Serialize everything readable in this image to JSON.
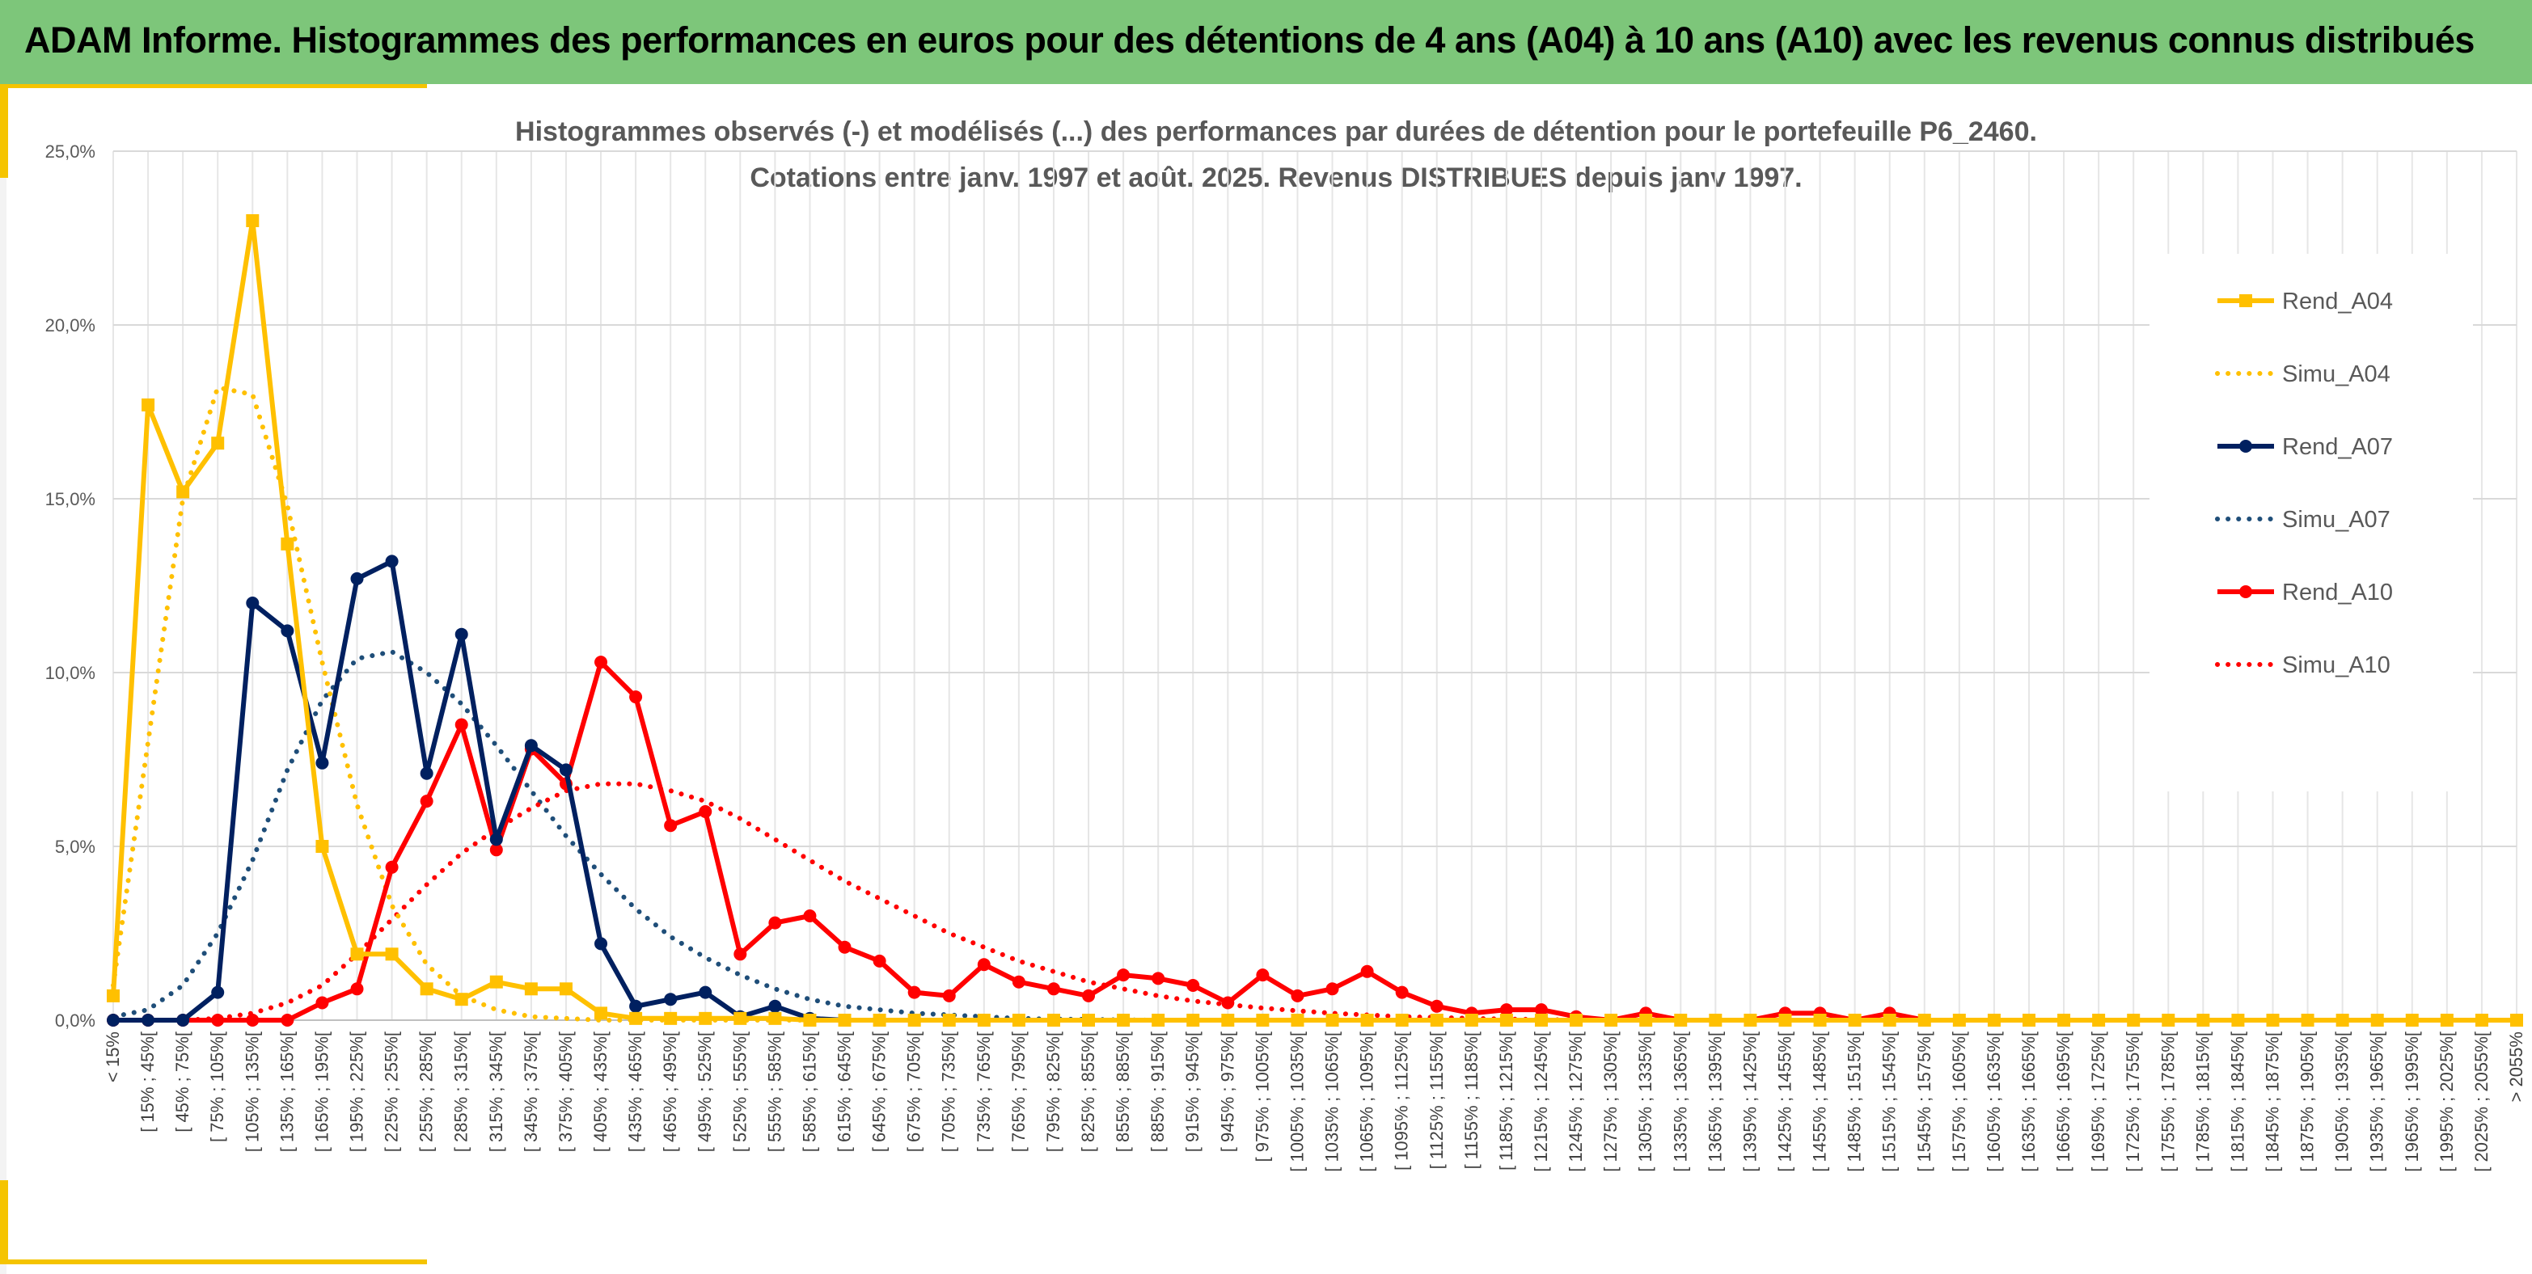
{
  "header": {
    "title": "ADAM Informe. Histogrammes des performances en euros pour des détentions de 4 ans (A04) à 10 ans (A10) avec les revenus connus distribués"
  },
  "colors": {
    "banner": "#7DC67A",
    "a04": "#FFC000",
    "a07": "#002060",
    "a07_simu": "#1F4E79",
    "a10": "#FF0000",
    "grid": "#D9D9D9",
    "text": "#595959"
  },
  "chart_data": {
    "type": "line",
    "title": "Histogrammes observés (-) et modélisés (...) des performances par durées de détention pour le portefeuille P6_2460.",
    "subtitle": "Cotations entre janv. 1997 et août. 2025. Revenus DISTRIBUES depuis janv 1997.",
    "xlabel": "",
    "ylabel": "",
    "ylim": [
      0,
      25
    ],
    "y_ticks": [
      "0,0%",
      "5,0%",
      "10,0%",
      "15,0%",
      "20,0%",
      "25,0%"
    ],
    "grid": true,
    "legend_position": "right",
    "categories": [
      "< 15%",
      "[ 15% ; 45%[",
      "[ 45% ; 75%[",
      "[ 75% ; 105%[",
      "[ 105% ; 135%[",
      "[ 135% ; 165%[",
      "[ 165% ; 195%[",
      "[ 195% ; 225%[",
      "[ 225% ; 255%[",
      "[ 255% ; 285%[",
      "[ 285% ; 315%[",
      "[ 315% ; 345%[",
      "[ 345% ; 375%[",
      "[ 375% ; 405%[",
      "[ 405% ; 435%[",
      "[ 435% ; 465%[",
      "[ 465% ; 495%[",
      "[ 495% ; 525%[",
      "[ 525% ; 555%[",
      "[ 555% ; 585%[",
      "[ 585% ; 615%[",
      "[ 615% ; 645%[",
      "[ 645% ; 675%[",
      "[ 675% ; 705%[",
      "[ 705% ; 735%[",
      "[ 735% ; 765%[",
      "[ 765% ; 795%[",
      "[ 795% ; 825%[",
      "[ 825% ; 855%[",
      "[ 855% ; 885%[",
      "[ 885% ; 915%[",
      "[ 915% ; 945%[",
      "[ 945% ; 975%[",
      "[ 975% ; 1005%[",
      "[ 1005% ; 1035%[",
      "[ 1035% ; 1065%[",
      "[ 1065% ; 1095%[",
      "[ 1095% ; 1125%[",
      "[ 1125% ; 1155%[",
      "[ 1155% ; 1185%[",
      "[ 1185% ; 1215%[",
      "[ 1215% ; 1245%[",
      "[ 1245% ; 1275%[",
      "[ 1275% ; 1305%[",
      "[ 1305% ; 1335%[",
      "[ 1335% ; 1365%[",
      "[ 1365% ; 1395%[",
      "[ 1395% ; 1425%[",
      "[ 1425% ; 1455%[",
      "[ 1455% ; 1485%[",
      "[ 1485% ; 1515%[",
      "[ 1515% ; 1545%[",
      "[ 1545% ; 1575%[",
      "[ 1575% ; 1605%[",
      "[ 1605% ; 1635%[",
      "[ 1635% ; 1665%[",
      "[ 1665% ; 1695%[",
      "[ 1695% ; 1725%[",
      "[ 1725% ; 1755%[",
      "[ 1755% ; 1785%[",
      "[ 1785% ; 1815%[",
      "[ 1815% ; 1845%[",
      "[ 1845% ; 1875%[",
      "[ 1875% ; 1905%[",
      "[ 1905% ; 1935%[",
      "[ 1935% ; 1965%[",
      "[ 1965% ; 1995%[",
      "[ 1995% ; 2025%[",
      "[ 2025% ; 2055%[",
      "> 2055%"
    ],
    "series": [
      {
        "name": "Rend_A04",
        "style": "solid",
        "marker": "square",
        "color": "#FFC000",
        "values": [
          0.7,
          17.7,
          15.2,
          16.6,
          23.0,
          13.7,
          5.0,
          1.9,
          1.9,
          0.9,
          0.6,
          1.1,
          0.9,
          0.9,
          0.2,
          0.05,
          0.05,
          0.05,
          0.05,
          0.05,
          0.0,
          0.0,
          0.0,
          0.0,
          0.0,
          0.0,
          0.0,
          0.0,
          0.0,
          0.0,
          0.0,
          0.0,
          0.0,
          0.0,
          0.0,
          0.0,
          0.0,
          0.0,
          0.0,
          0.0,
          0.0,
          0.0,
          0.0,
          0.0,
          0.0,
          0.0,
          0.0,
          0.0,
          0.0,
          0.0,
          0.0,
          0.0,
          0.0,
          0.0,
          0.0,
          0.0,
          0.0,
          0.0,
          0.0,
          0.0,
          0.0,
          0.0,
          0.0,
          0.0,
          0.0,
          0.0,
          0.0,
          0.0,
          0.0,
          0.0
        ]
      },
      {
        "name": "Simu_A04",
        "style": "dotted",
        "color": "#FFC000",
        "values": [
          1.0,
          8.0,
          15.0,
          18.2,
          18.0,
          14.8,
          10.3,
          6.2,
          3.3,
          1.6,
          0.7,
          0.3,
          0.1,
          0.05,
          0.0,
          0.0,
          0.0,
          0.0,
          0.0,
          0.0,
          0.0,
          0.0,
          0.0,
          0.0,
          0.0,
          0.0,
          0.0,
          0.0,
          0.0,
          0.0,
          0.0,
          0.0,
          0.0,
          0.0,
          0.0,
          0.0,
          0.0,
          0.0,
          0.0,
          0.0,
          0.0,
          0.0,
          0.0,
          0.0,
          0.0,
          0.0,
          0.0,
          0.0,
          0.0,
          0.0,
          0.0,
          0.0,
          0.0,
          0.0,
          0.0,
          0.0,
          0.0,
          0.0,
          0.0,
          0.0,
          0.0,
          0.0,
          0.0,
          0.0,
          0.0,
          0.0,
          0.0,
          0.0,
          0.0,
          0.0
        ]
      },
      {
        "name": "Rend_A07",
        "style": "solid",
        "marker": "circle",
        "color": "#002060",
        "values": [
          0.0,
          0.0,
          0.0,
          0.8,
          12.0,
          11.2,
          7.4,
          12.7,
          13.2,
          7.1,
          11.1,
          5.2,
          7.9,
          7.2,
          2.2,
          0.4,
          0.6,
          0.8,
          0.1,
          0.4,
          0.05,
          0.0,
          0.0,
          0.0,
          0.0,
          0.0,
          0.0,
          0.0,
          0.0,
          0.0,
          0.0,
          0.0,
          0.0,
          0.0,
          0.0,
          0.0,
          0.0,
          0.0,
          0.0,
          0.0,
          0.0,
          0.0,
          0.0,
          0.0,
          0.0,
          0.0,
          0.0,
          0.0,
          0.0,
          0.0,
          0.0,
          0.0,
          0.0,
          0.0,
          0.0,
          0.0,
          0.0,
          0.0,
          0.0,
          0.0,
          0.0,
          0.0,
          0.0,
          0.0,
          0.0,
          0.0,
          0.0,
          0.0,
          0.0,
          0.0
        ]
      },
      {
        "name": "Simu_A07",
        "style": "dotted",
        "color": "#1F4E79",
        "values": [
          0.1,
          0.3,
          1.0,
          2.5,
          4.6,
          7.2,
          9.2,
          10.4,
          10.6,
          10.0,
          9.1,
          7.9,
          6.6,
          5.3,
          4.2,
          3.2,
          2.4,
          1.8,
          1.3,
          0.9,
          0.6,
          0.4,
          0.3,
          0.2,
          0.15,
          0.1,
          0.05,
          0.03,
          0.02,
          0.01,
          0.0,
          0.0,
          0.0,
          0.0,
          0.0,
          0.0,
          0.0,
          0.0,
          0.0,
          0.0,
          0.0,
          0.0,
          0.0,
          0.0,
          0.0,
          0.0,
          0.0,
          0.0,
          0.0,
          0.0,
          0.0,
          0.0,
          0.0,
          0.0,
          0.0,
          0.0,
          0.0,
          0.0,
          0.0,
          0.0,
          0.0,
          0.0,
          0.0,
          0.0,
          0.0,
          0.0,
          0.0,
          0.0,
          0.0,
          0.0
        ]
      },
      {
        "name": "Rend_A10",
        "style": "solid",
        "marker": "circle",
        "color": "#FF0000",
        "values": [
          0.0,
          0.0,
          0.0,
          0.0,
          0.0,
          0.0,
          0.5,
          0.9,
          4.4,
          6.3,
          8.5,
          4.9,
          7.8,
          6.8,
          10.3,
          9.3,
          5.6,
          6.0,
          1.9,
          2.8,
          3.0,
          2.1,
          1.7,
          0.8,
          0.7,
          1.6,
          1.1,
          0.9,
          0.7,
          1.3,
          1.2,
          1.0,
          0.5,
          1.3,
          0.7,
          0.9,
          1.4,
          0.8,
          0.4,
          0.2,
          0.3,
          0.3,
          0.1,
          0.0,
          0.2,
          0.0,
          0.0,
          0.0,
          0.2,
          0.2,
          0.0,
          0.2,
          0.0,
          0.0,
          0.0,
          0.0,
          0.0,
          0.0,
          0.0,
          0.0,
          0.0,
          0.0,
          0.0,
          0.0,
          0.0,
          0.0,
          0.0,
          0.0,
          0.0,
          0.0
        ]
      },
      {
        "name": "Simu_A10",
        "style": "dotted",
        "color": "#FF0000",
        "values": [
          0.0,
          0.0,
          0.0,
          0.05,
          0.2,
          0.5,
          1.0,
          1.9,
          2.9,
          3.9,
          4.8,
          5.5,
          6.1,
          6.6,
          6.8,
          6.8,
          6.6,
          6.3,
          5.8,
          5.2,
          4.6,
          4.0,
          3.5,
          3.0,
          2.5,
          2.1,
          1.7,
          1.4,
          1.1,
          0.9,
          0.7,
          0.55,
          0.45,
          0.35,
          0.27,
          0.2,
          0.15,
          0.1,
          0.08,
          0.05,
          0.03,
          0.02,
          0.0,
          0.0,
          0.0,
          0.0,
          0.0,
          0.0,
          0.0,
          0.0,
          0.0,
          0.0,
          0.0,
          0.0,
          0.0,
          0.0,
          0.0,
          0.0,
          0.0,
          0.0,
          0.0,
          0.0,
          0.0,
          0.0,
          0.0,
          0.0,
          0.0,
          0.0,
          0.0,
          0.0
        ]
      }
    ]
  }
}
